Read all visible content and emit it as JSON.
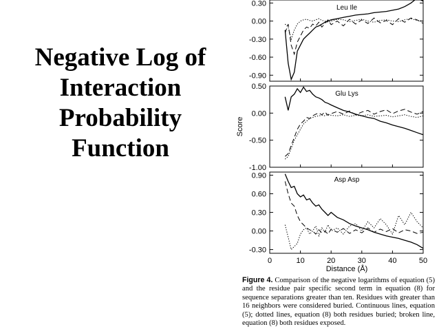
{
  "slide": {
    "title_lines": [
      "Negative Log of",
      "Interaction",
      "Probability",
      "Function"
    ]
  },
  "figure": {
    "shared_ylabel": "Score",
    "xlabel": "Distance (Å)",
    "xticks": [
      "0",
      "10",
      "20",
      "30",
      "40",
      "50"
    ],
    "caption_label": "Figure 4.",
    "caption_text": "Comparison of the negative logarithms of equation (5) and the residue pair specific second term in equation (8) for sequence separations greater than ten. Residues with greater than 16 neighbors were considered buried. Continuous lines, equation (5); dotted lines, equation (8) both residues buried; broken line, equation (8) both residues exposed."
  },
  "colors": {
    "line": "#000000",
    "background": "#ffffff"
  },
  "chart_data": [
    {
      "type": "line",
      "title": "Leu Ile",
      "xlim": [
        0,
        50
      ],
      "ylim": [
        -1.0,
        0.35
      ],
      "yticks": [
        0.3,
        0.0,
        -0.3,
        -0.6,
        -0.9
      ],
      "ytick_labels": [
        "0.30",
        "0.00",
        "-0.30",
        "-0.60",
        "-0.90"
      ],
      "x": [
        5,
        6,
        7,
        8,
        9,
        10,
        11,
        12,
        13,
        14,
        15,
        16,
        17,
        18,
        19,
        20,
        22,
        24,
        26,
        28,
        30,
        32,
        34,
        36,
        38,
        40,
        42,
        44,
        46,
        48,
        50
      ],
      "series": [
        {
          "name": "equation (5)",
          "style": "solid",
          "values": [
            -0.15,
            -0.7,
            -0.97,
            -0.85,
            -0.5,
            -0.4,
            -0.3,
            -0.25,
            -0.2,
            -0.15,
            -0.1,
            -0.08,
            -0.05,
            -0.02,
            0.0,
            0.02,
            0.04,
            0.06,
            0.08,
            0.1,
            0.11,
            0.12,
            0.14,
            0.15,
            0.16,
            0.18,
            0.2,
            0.24,
            0.3,
            0.38,
            0.33
          ]
        },
        {
          "name": "equation (8) both residues buried",
          "style": "dotted",
          "values": [
            -0.05,
            -0.1,
            -0.3,
            -0.15,
            -0.05,
            0.0,
            0.02,
            0.03,
            0.01,
            0.0,
            0.02,
            0.04,
            0.01,
            0.0,
            -0.02,
            0.0,
            0.03,
            0.02,
            -0.01,
            0.01,
            0.03,
            0.0,
            -0.02,
            0.01,
            0.02,
            0.0,
            -0.01,
            0.02,
            0.04,
            0.01,
            0.0
          ]
        },
        {
          "name": "equation (8) both residues exposed",
          "style": "dashed",
          "values": [
            -0.2,
            -0.05,
            -0.4,
            -0.55,
            -0.35,
            -0.25,
            -0.15,
            -0.1,
            -0.12,
            -0.05,
            -0.08,
            -0.02,
            -0.1,
            -0.04,
            0.02,
            -0.06,
            0.0,
            -0.08,
            0.03,
            -0.05,
            0.02,
            -0.04,
            0.05,
            -0.03,
            0.01,
            -0.06,
            0.04,
            -0.02,
            0.05,
            0.02,
            -0.04
          ]
        }
      ]
    },
    {
      "type": "line",
      "title": "Glu Lys",
      "xlim": [
        0,
        50
      ],
      "ylim": [
        -1.0,
        0.5
      ],
      "yticks": [
        0.5,
        0.0,
        -0.5,
        -1.0
      ],
      "ytick_labels": [
        "0.50",
        "0.00",
        "-0.50",
        "-1.00"
      ],
      "x": [
        5,
        6,
        7,
        8,
        9,
        10,
        11,
        12,
        13,
        14,
        15,
        16,
        17,
        18,
        19,
        20,
        22,
        24,
        26,
        28,
        30,
        32,
        34,
        36,
        38,
        40,
        42,
        44,
        46,
        48,
        50
      ],
      "series": [
        {
          "name": "equation (5)",
          "style": "solid",
          "values": [
            0.3,
            0.05,
            0.3,
            0.35,
            0.45,
            0.38,
            0.48,
            0.4,
            0.42,
            0.35,
            0.3,
            0.28,
            0.25,
            0.2,
            0.18,
            0.15,
            0.1,
            0.05,
            0.02,
            -0.02,
            -0.05,
            -0.08,
            -0.1,
            -0.15,
            -0.18,
            -0.22,
            -0.25,
            -0.28,
            -0.32,
            -0.36,
            -0.4
          ]
        },
        {
          "name": "equation (8) both residues buried",
          "style": "dotted",
          "values": [
            -0.85,
            -0.8,
            -0.65,
            -0.5,
            -0.4,
            -0.3,
            -0.2,
            -0.15,
            -0.1,
            -0.08,
            -0.06,
            -0.05,
            -0.04,
            -0.05,
            -0.02,
            -0.04,
            -0.05,
            -0.03,
            -0.06,
            -0.04,
            -0.05,
            -0.03,
            -0.06,
            -0.05,
            -0.04,
            -0.07,
            -0.05,
            -0.03,
            -0.06,
            -0.08,
            -0.05
          ]
        },
        {
          "name": "equation (8) both residues exposed",
          "style": "dashed",
          "values": [
            -0.8,
            -0.75,
            -0.6,
            -0.45,
            -0.3,
            -0.2,
            -0.15,
            -0.08,
            -0.1,
            -0.05,
            -0.02,
            0.0,
            -0.03,
            0.02,
            -0.04,
            -0.01,
            0.03,
            -0.02,
            0.04,
            -0.03,
            0.02,
            0.05,
            -0.02,
            0.03,
            0.06,
            -0.01,
            0.04,
            0.07,
            0.02,
            -0.02,
            0.03
          ]
        }
      ]
    },
    {
      "type": "line",
      "title": "Asp Asp",
      "xlim": [
        0,
        50
      ],
      "ylim": [
        -0.36,
        0.95
      ],
      "yticks": [
        0.9,
        0.6,
        0.3,
        0.0,
        -0.3
      ],
      "ytick_labels": [
        "0.90",
        "0.60",
        "0.30",
        "0.00",
        "-0.30"
      ],
      "x": [
        5,
        6,
        7,
        8,
        9,
        10,
        11,
        12,
        13,
        14,
        15,
        16,
        17,
        18,
        19,
        20,
        22,
        24,
        26,
        28,
        30,
        32,
        34,
        36,
        38,
        40,
        42,
        44,
        46,
        48,
        50
      ],
      "series": [
        {
          "name": "equation (5)",
          "style": "solid",
          "values": [
            0.92,
            0.8,
            0.7,
            0.72,
            0.6,
            0.55,
            0.58,
            0.5,
            0.52,
            0.45,
            0.4,
            0.42,
            0.35,
            0.3,
            0.25,
            0.3,
            0.22,
            0.18,
            0.12,
            0.08,
            0.05,
            0.02,
            -0.02,
            -0.05,
            -0.08,
            -0.1,
            -0.12,
            -0.15,
            -0.18,
            -0.22,
            -0.28
          ]
        },
        {
          "name": "equation (8) both residues buried",
          "style": "dotted",
          "values": [
            0.1,
            -0.1,
            -0.3,
            -0.25,
            -0.2,
            -0.05,
            0.02,
            0.05,
            -0.05,
            0.0,
            0.08,
            -0.08,
            0.05,
            -0.02,
            0.1,
            0.0,
            0.05,
            -0.05,
            0.08,
            0.12,
            0.0,
            0.15,
            0.05,
            0.2,
            0.1,
            -0.05,
            0.25,
            0.1,
            0.3,
            0.15,
            0.05
          ]
        },
        {
          "name": "equation (8) both residues exposed",
          "style": "dashed",
          "values": [
            0.8,
            0.6,
            0.45,
            0.4,
            0.25,
            0.15,
            0.1,
            0.05,
            0.02,
            0.0,
            -0.05,
            0.02,
            -0.03,
            0.0,
            -0.05,
            0.03,
            -0.02,
            0.04,
            -0.04,
            0.02,
            -0.03,
            0.05,
            -0.02,
            0.03,
            -0.01,
            0.04,
            -0.03,
            0.02,
            0.0,
            -0.04,
            -0.02
          ]
        }
      ]
    }
  ]
}
